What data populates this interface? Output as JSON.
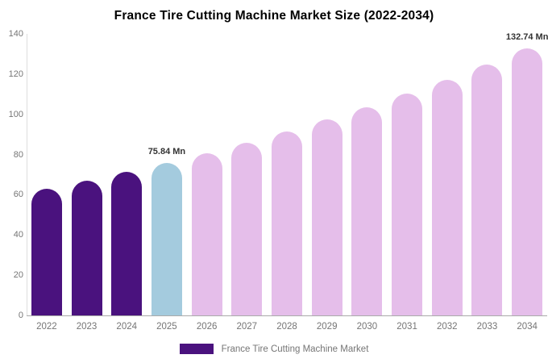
{
  "title": "France Tire Cutting Machine Market Size (2022-2034)",
  "chart_data": {
    "type": "bar",
    "title": "France Tire Cutting Machine Market Size (2022-2034)",
    "categories": [
      "2022",
      "2023",
      "2024",
      "2025",
      "2026",
      "2027",
      "2028",
      "2029",
      "2030",
      "2031",
      "2032",
      "2033",
      "2034"
    ],
    "values": [
      62.9,
      67.0,
      71.3,
      75.84,
      80.7,
      85.9,
      91.4,
      97.3,
      103.5,
      110.2,
      117.2,
      124.7,
      132.74
    ],
    "bar_colors": [
      "#4A127E",
      "#4A127E",
      "#4A127E",
      "#A4CBDE",
      "#E5BEEA",
      "#E5BEEA",
      "#E5BEEA",
      "#E5BEEA",
      "#E5BEEA",
      "#E5BEEA",
      "#E5BEEA",
      "#E5BEEA",
      "#E5BEEA"
    ],
    "annotations": [
      {
        "category": "2025",
        "text": "75.84 Mn"
      },
      {
        "category": "2034",
        "text": "132.74 Mn"
      }
    ],
    "xlabel": "",
    "ylabel": "",
    "ylim": [
      0,
      140
    ],
    "yticks": [
      0,
      20,
      40,
      60,
      80,
      100,
      120,
      140
    ],
    "grid": false,
    "legend": {
      "position": "bottom",
      "label": "France Tire Cutting Machine Market",
      "swatch_color": "#4A127E"
    },
    "colors": {
      "historical_bar": "#4A127E",
      "base_year_bar": "#A4CBDE",
      "forecast_bar": "#E5BEEA",
      "axis_text": "#757575",
      "annotation_text": "#333333"
    }
  }
}
